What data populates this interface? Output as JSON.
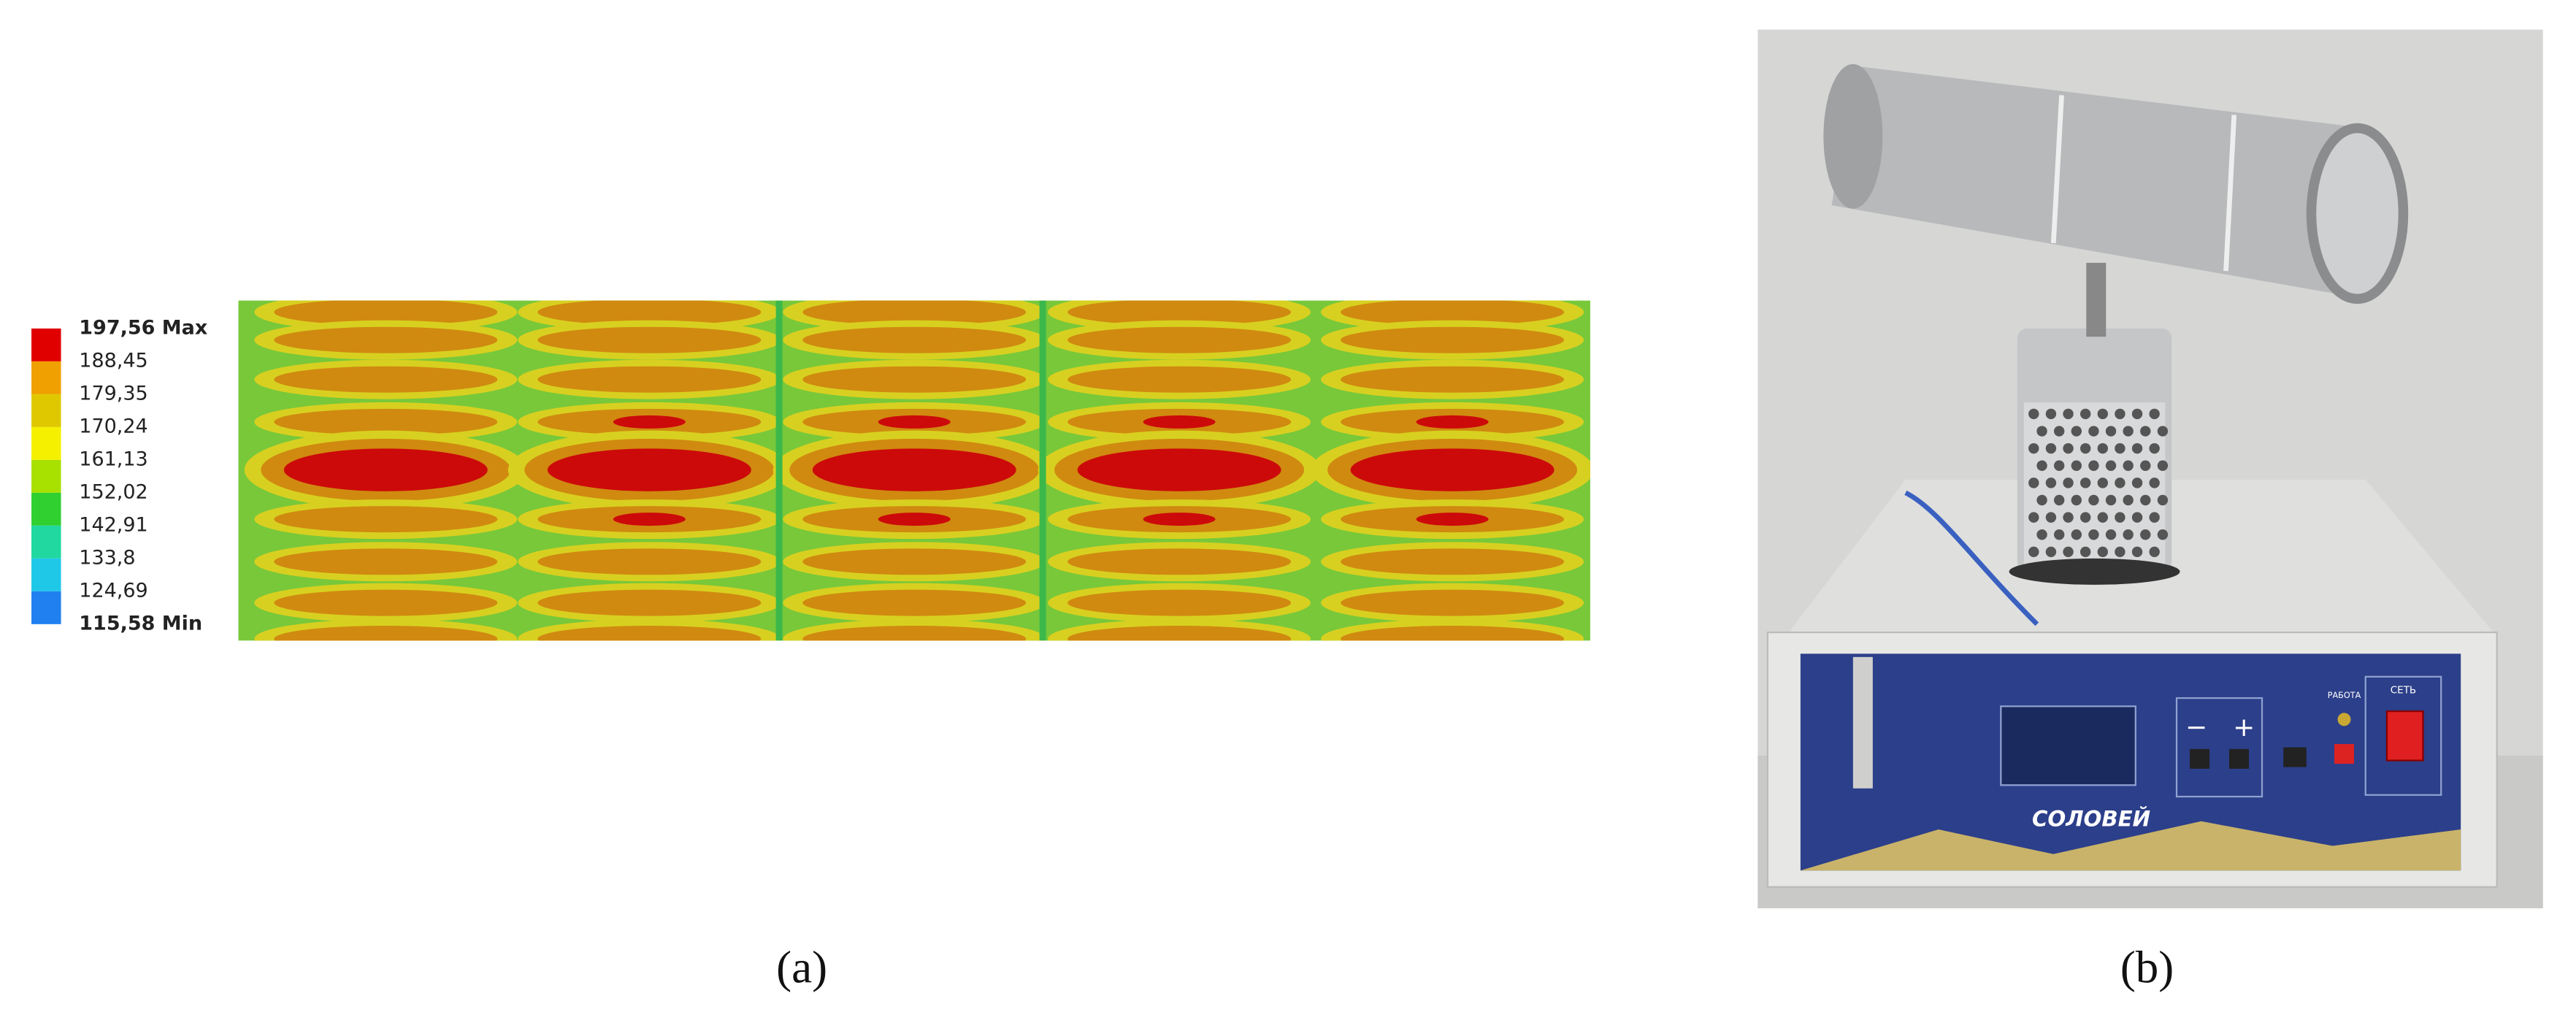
{
  "figure": {
    "panel_a": {
      "legend": [
        "197,56 Max",
        "188,45",
        "179,35",
        "170,24",
        "161,13",
        "152,02",
        "142,91",
        "133,8",
        "124,69",
        "115,58 Min"
      ],
      "caption": "(a)"
    },
    "panel_b": {
      "brand": "СОЛОВЕЙ",
      "power_label": "СЕТЬ",
      "work_label": "РАБОТА",
      "minus": "−",
      "plus": "+",
      "caption": "(b)"
    }
  }
}
